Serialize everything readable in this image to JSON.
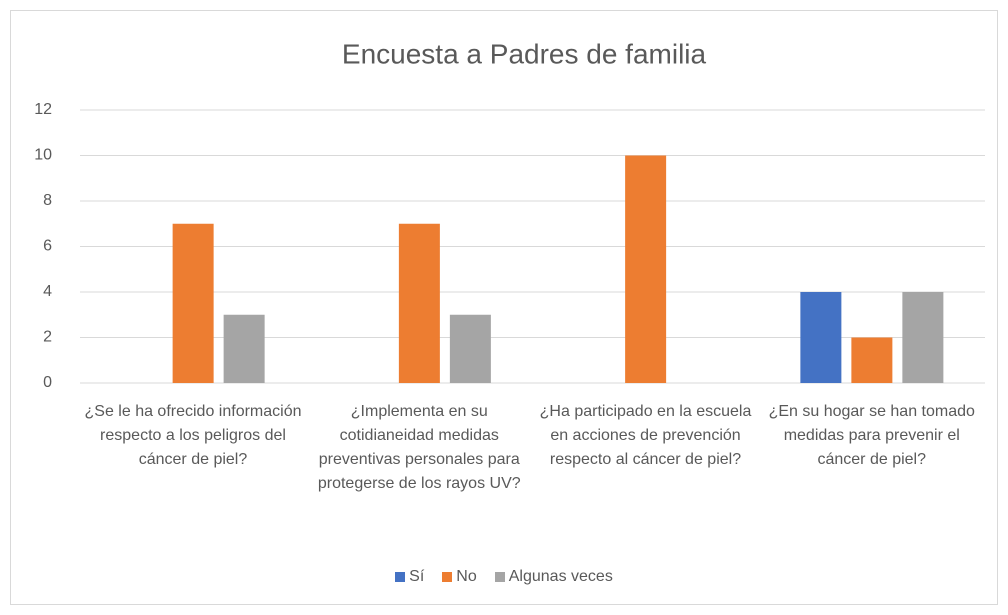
{
  "chart_data": {
    "type": "bar",
    "title": "Encuesta a Padres de familia",
    "categories": [
      "¿Se le ha ofrecido información respecto a los peligros del cáncer de piel?",
      "¿Implementa en su cotidianeidad medidas preventivas personales para protegerse de los rayos UV?",
      "¿Ha participado en la escuela en acciones de prevención respecto al cáncer de piel?",
      "¿En su hogar se han tomado medidas para prevenir el cáncer de piel?"
    ],
    "series": [
      {
        "name": "Sí",
        "color": "#4472c4",
        "values": [
          0,
          0,
          0,
          4
        ]
      },
      {
        "name": "No",
        "color": "#ed7d31",
        "values": [
          7,
          7,
          10,
          2
        ]
      },
      {
        "name": "Algunas veces",
        "color": "#a5a5a5",
        "values": [
          3,
          3,
          0,
          4
        ]
      }
    ],
    "ylim": [
      0,
      12
    ],
    "yticks": [
      0,
      2,
      4,
      6,
      8,
      10,
      12
    ],
    "grid": true,
    "legend": "bottom"
  }
}
